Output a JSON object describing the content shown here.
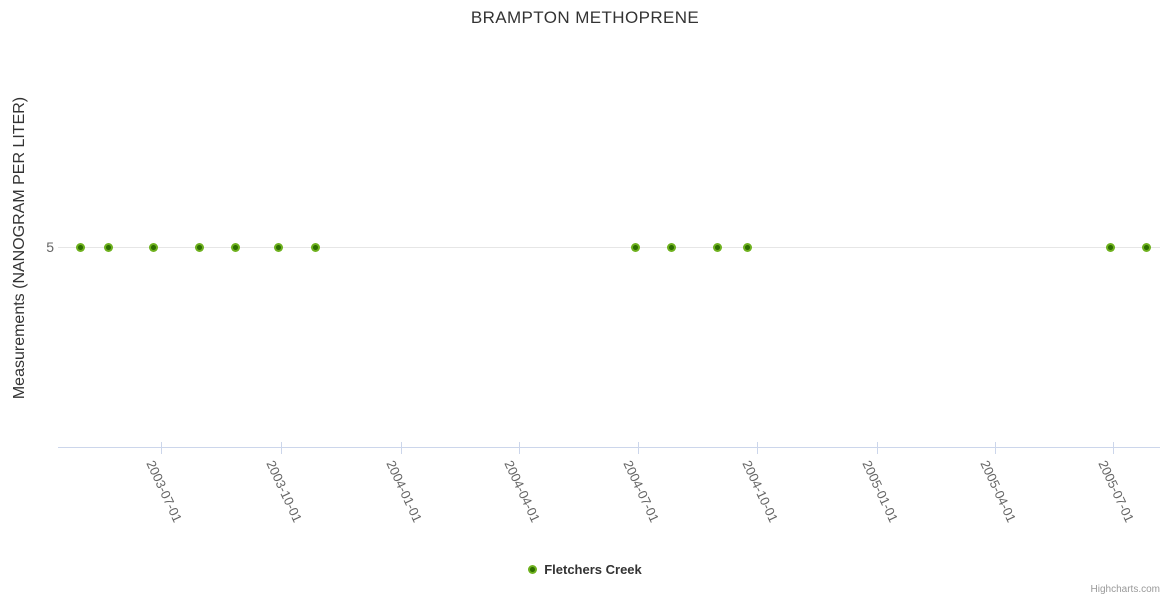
{
  "chart_data": {
    "type": "scatter",
    "title": "BRAMPTON METHOPRENE",
    "xlabel": "",
    "ylabel": "Measurements (NANOGRAM PER LITER)",
    "xlim": [
      "2003-04-13",
      "2005-08-06"
    ],
    "ylim": [
      0,
      10
    ],
    "grid": "horizontal-at-ticks-only",
    "legend_position": "bottom-center",
    "y_ticks": [
      {
        "value": 5,
        "label": "5"
      }
    ],
    "x_ticks": [
      {
        "date": "2003-07-01",
        "label": "2003-07-01"
      },
      {
        "date": "2003-10-01",
        "label": "2003-10-01"
      },
      {
        "date": "2004-01-01",
        "label": "2004-01-01"
      },
      {
        "date": "2004-04-01",
        "label": "2004-04-01"
      },
      {
        "date": "2004-07-01",
        "label": "2004-07-01"
      },
      {
        "date": "2004-10-01",
        "label": "2004-10-01"
      },
      {
        "date": "2005-01-01",
        "label": "2005-01-01"
      },
      {
        "date": "2005-04-01",
        "label": "2005-04-01"
      },
      {
        "date": "2005-07-01",
        "label": "2005-07-01"
      }
    ],
    "series": [
      {
        "name": "Fletchers Creek",
        "marker_outer_color": "#6eb11e",
        "marker_center_color": "#2d6e00",
        "data": [
          {
            "x": "2003-04-30",
            "y": 5
          },
          {
            "x": "2003-05-22",
            "y": 5
          },
          {
            "x": "2003-06-25",
            "y": 5
          },
          {
            "x": "2003-07-31",
            "y": 5
          },
          {
            "x": "2003-08-27",
            "y": 5
          },
          {
            "x": "2003-09-29",
            "y": 5
          },
          {
            "x": "2003-10-28",
            "y": 5
          },
          {
            "x": "2004-06-29",
            "y": 5
          },
          {
            "x": "2004-07-27",
            "y": 5
          },
          {
            "x": "2004-08-31",
            "y": 5
          },
          {
            "x": "2004-09-23",
            "y": 5
          },
          {
            "x": "2005-06-29",
            "y": 5
          },
          {
            "x": "2005-07-27",
            "y": 5
          }
        ]
      }
    ],
    "credits": "Highcharts.com",
    "colors": {
      "title_text": "#333333",
      "tick_text": "#666666",
      "grid_line": "#e6e6e6",
      "axis_line": "#ccd6eb",
      "credits_text": "#999999"
    }
  }
}
